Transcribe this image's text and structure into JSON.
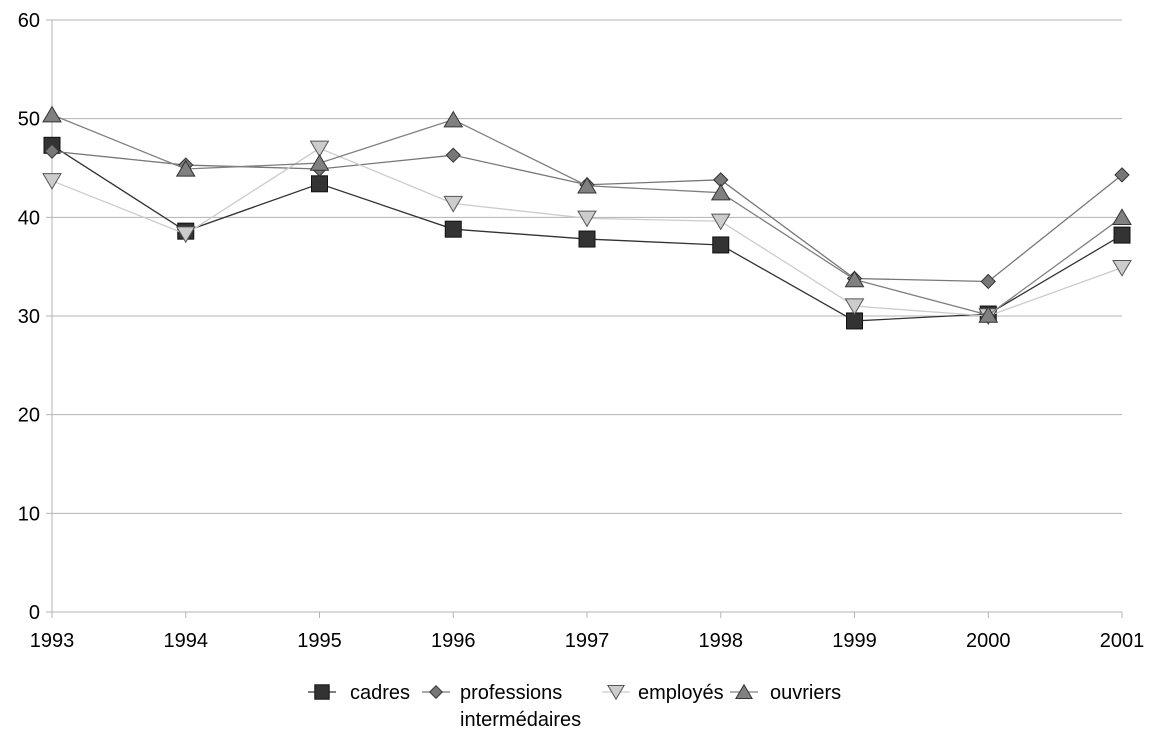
{
  "chart_data": {
    "type": "line",
    "title": "",
    "xlabel": "",
    "ylabel": "",
    "x": [
      1993,
      1994,
      1995,
      1996,
      1997,
      1998,
      1999,
      2000,
      2001
    ],
    "x_tick_labels": [
      "1993",
      "1994",
      "1995",
      "1996",
      "1997",
      "1998",
      "1999",
      "2000",
      "2001"
    ],
    "y_tick_labels": [
      "0",
      "10",
      "20",
      "30",
      "40",
      "50",
      "60"
    ],
    "ylim": [
      0,
      60
    ],
    "grid": "horizontal",
    "legend_position": "bottom",
    "series": [
      {
        "name": "cadres",
        "marker": "square",
        "marker_color": "#333333",
        "line_color": "#333333",
        "values": [
          47.3,
          38.6,
          43.4,
          38.8,
          37.8,
          37.2,
          29.5,
          30.2,
          38.2
        ]
      },
      {
        "name_line1": "professions",
        "name_line2": "intermédaires",
        "marker": "diamond",
        "marker_color": "#777777",
        "line_color": "#777777",
        "values": [
          46.7,
          45.3,
          44.9,
          46.3,
          43.3,
          43.8,
          33.8,
          33.5,
          44.3
        ]
      },
      {
        "name": "employés",
        "marker": "triangle-down",
        "marker_color": "#cccccc",
        "line_color": "#cccccc",
        "values": [
          43.7,
          38.3,
          47.0,
          41.4,
          39.9,
          39.6,
          31.0,
          30.0,
          34.9
        ]
      },
      {
        "name": "ouvriers",
        "marker": "triangle-up",
        "marker_color": "#808080",
        "line_color": "#808080",
        "values": [
          50.4,
          44.9,
          45.5,
          49.9,
          43.2,
          42.5,
          33.7,
          30.1,
          40.0
        ]
      }
    ]
  }
}
